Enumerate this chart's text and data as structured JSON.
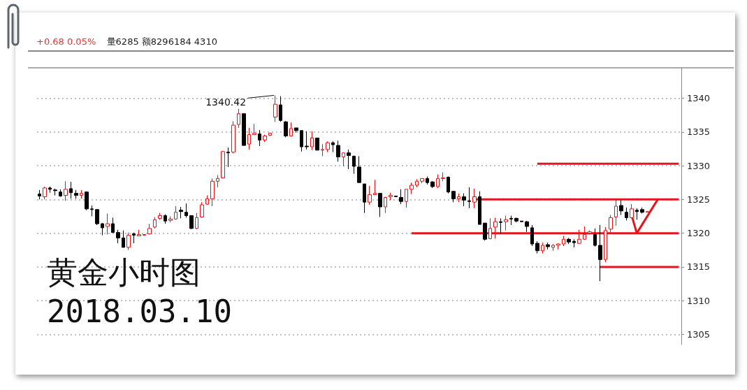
{
  "chart_data": {
    "type": "candlestick",
    "title": "黄金小时图",
    "subtitle": "2018.03.10",
    "annotations": [
      "+0.68 0.05%",
      "量6285 额8296184 4310",
      "1340.42"
    ],
    "categories": [
      null,
      null,
      null,
      null,
      null,
      null,
      null,
      null,
      null,
      null,
      null,
      null,
      null,
      null,
      null,
      null,
      null,
      null,
      null,
      null,
      null,
      null,
      null,
      null,
      null,
      null,
      null,
      null,
      null,
      null,
      null,
      null,
      null,
      null,
      null,
      null,
      null,
      null,
      null,
      null,
      null,
      null,
      null,
      null,
      null,
      null,
      null,
      null,
      null,
      null,
      null,
      null,
      null,
      null,
      null,
      null,
      null,
      null,
      null,
      null,
      null,
      null,
      null,
      null,
      null,
      null,
      null,
      null,
      null,
      null,
      null,
      null,
      null,
      null,
      null,
      null,
      null,
      null,
      null,
      null,
      null,
      null,
      null,
      null,
      null,
      null,
      null,
      null,
      null,
      null,
      null,
      null,
      null,
      null,
      null,
      null,
      null,
      null,
      null,
      null,
      null,
      null,
      null,
      null,
      null,
      null,
      null,
      null,
      null,
      null,
      null,
      null,
      null,
      null,
      null,
      null,
      null,
      null,
      null,
      null,
      null,
      null,
      null
    ],
    "ohlc": [
      [
        1325.8,
        1326.4,
        1325.0,
        1325.5
      ],
      [
        1325.4,
        1326.9,
        1325.0,
        1326.7
      ],
      [
        1326.7,
        1326.9,
        1326.0,
        1326.5
      ],
      [
        1326.4,
        1326.6,
        1325.6,
        1326.3
      ],
      [
        1326.1,
        1326.5,
        1325.4,
        1325.5
      ],
      [
        1325.6,
        1327.7,
        1324.8,
        1326.5
      ],
      [
        1326.6,
        1327.6,
        1325.1,
        1326.0
      ],
      [
        1325.9,
        1326.4,
        1325.1,
        1325.6
      ],
      [
        1325.6,
        1326.4,
        1325.1,
        1325.9
      ],
      [
        1326.1,
        1326.2,
        1323.4,
        1323.6
      ],
      [
        1323.6,
        1324.1,
        1322.5,
        1323.5
      ],
      [
        1323.5,
        1323.5,
        1321.2,
        1321.4
      ],
      [
        1321.4,
        1321.5,
        1319.7,
        1320.8
      ],
      [
        1321.0,
        1322.9,
        1319.8,
        1321.4
      ],
      [
        1321.4,
        1322.3,
        1320.1,
        1320.1
      ],
      [
        1320.1,
        1320.5,
        1318.5,
        1319.3
      ],
      [
        1319.3,
        1320.4,
        1317.9,
        1317.9
      ],
      [
        1317.9,
        1320.1,
        1317.5,
        1319.7
      ],
      [
        1319.9,
        1320.1,
        1318.5,
        1319.7
      ],
      [
        1319.6,
        1320.5,
        1319.6,
        1319.8
      ],
      [
        1319.7,
        1319.8,
        1319.7,
        1319.8
      ],
      [
        1319.9,
        1321.4,
        1319.8,
        1320.7
      ],
      [
        1320.9,
        1322.4,
        1320.7,
        1322.0
      ],
      [
        1322.2,
        1323.0,
        1322.0,
        1322.6
      ],
      [
        1322.6,
        1322.8,
        1321.4,
        1321.8
      ],
      [
        1321.9,
        1322.5,
        1321.6,
        1322.1
      ],
      [
        1322.1,
        1324.0,
        1322.0,
        1323.1
      ],
      [
        1323.4,
        1323.9,
        1322.2,
        1323.2
      ],
      [
        1323.1,
        1324.4,
        1322.3,
        1322.6
      ],
      [
        1322.6,
        1322.6,
        1320.6,
        1320.7
      ],
      [
        1320.7,
        1323.0,
        1320.6,
        1322.3
      ],
      [
        1322.4,
        1324.6,
        1322.3,
        1324.2
      ],
      [
        1324.3,
        1325.6,
        1324.2,
        1325.1
      ],
      [
        1325.1,
        1328.1,
        1324.0,
        1327.7
      ],
      [
        1327.7,
        1328.6,
        1326.8,
        1328.1
      ],
      [
        1328.2,
        1332.2,
        1328.1,
        1332.1
      ],
      [
        1332.0,
        1332.7,
        1329.8,
        1331.9
      ],
      [
        1332.0,
        1336.6,
        1331.8,
        1336.0
      ],
      [
        1336.1,
        1338.4,
        1335.6,
        1337.7
      ],
      [
        1337.7,
        1337.7,
        1333.0,
        1333.0
      ],
      [
        1333.2,
        1335.6,
        1332.4,
        1334.6
      ],
      [
        1334.6,
        1336.2,
        1334.6,
        1334.8
      ],
      [
        1334.7,
        1335.3,
        1332.9,
        1333.8
      ],
      [
        1333.8,
        1334.6,
        1333.5,
        1334.4
      ],
      [
        1334.5,
        1334.9,
        1334.4,
        1334.8
      ],
      [
        1337.2,
        1340.42,
        1336.5,
        1339.1
      ],
      [
        1339.0,
        1340.3,
        1336.5,
        1336.7
      ],
      [
        1336.5,
        1336.6,
        1334.2,
        1334.4
      ],
      [
        1334.4,
        1336.4,
        1334.3,
        1335.5
      ],
      [
        1335.6,
        1335.6,
        1334.9,
        1335.2
      ],
      [
        1335.2,
        1335.2,
        1332.1,
        1332.8
      ],
      [
        1332.9,
        1335.1,
        1332.4,
        1332.8
      ],
      [
        1332.8,
        1335.1,
        1332.3,
        1334.1
      ],
      [
        1334.1,
        1334.1,
        1332.3,
        1332.3
      ],
      [
        1332.3,
        1333.2,
        1331.4,
        1332.4
      ],
      [
        1332.4,
        1333.6,
        1332.0,
        1333.4
      ],
      [
        1333.4,
        1333.6,
        1332.0,
        1333.1
      ],
      [
        1333.0,
        1333.7,
        1330.6,
        1331.3
      ],
      [
        1331.3,
        1331.9,
        1329.9,
        1331.9
      ],
      [
        1331.9,
        1332.4,
        1329.5,
        1331.5
      ],
      [
        1331.4,
        1331.5,
        1328.8,
        1329.9
      ],
      [
        1329.8,
        1331.4,
        1327.5,
        1327.5
      ],
      [
        1327.3,
        1327.3,
        1323.0,
        1324.6
      ],
      [
        1324.6,
        1327.0,
        1324.2,
        1325.7
      ],
      [
        1325.7,
        1327.9,
        1325.7,
        1325.9
      ],
      [
        1325.9,
        1325.9,
        1322.4,
        1323.9
      ],
      [
        1323.9,
        1325.4,
        1323.0,
        1325.3
      ],
      [
        1325.4,
        1326.0,
        1324.9,
        1325.6
      ],
      [
        1325.5,
        1325.5,
        1325.4,
        1325.4
      ],
      [
        1325.3,
        1326.5,
        1324.3,
        1324.7
      ],
      [
        1324.7,
        1326.5,
        1323.8,
        1326.5
      ],
      [
        1326.5,
        1327.5,
        1325.8,
        1327.1
      ],
      [
        1327.1,
        1328.0,
        1326.8,
        1327.7
      ],
      [
        1327.7,
        1328.1,
        1327.4,
        1328.1
      ],
      [
        1328.1,
        1328.4,
        1327.2,
        1327.5
      ],
      [
        1327.6,
        1327.7,
        1326.7,
        1326.9
      ],
      [
        1326.9,
        1328.7,
        1326.7,
        1328.1
      ],
      [
        1328.1,
        1329.0,
        1327.7,
        1328.2
      ],
      [
        1328.3,
        1328.4,
        1325.9,
        1326.1
      ],
      [
        1326.2,
        1326.2,
        1324.6,
        1325.1
      ],
      [
        1325.1,
        1325.9,
        1324.6,
        1325.4
      ],
      [
        1325.4,
        1325.9,
        1324.0,
        1324.9
      ],
      [
        1324.8,
        1326.8,
        1323.7,
        1324.7
      ],
      [
        1324.6,
        1326.6,
        1323.7,
        1325.4
      ],
      [
        1325.4,
        1326.2,
        1321.3,
        1321.3
      ],
      [
        1321.5,
        1321.5,
        1318.9,
        1319.1
      ],
      [
        1319.2,
        1322.2,
        1319.1,
        1320.7
      ],
      [
        1320.9,
        1322.3,
        1319.2,
        1321.7
      ],
      [
        1321.7,
        1322.2,
        1320.0,
        1321.6
      ],
      [
        1321.7,
        1322.6,
        1320.4,
        1322.0
      ],
      [
        1322.2,
        1322.6,
        1321.2,
        1322.1
      ],
      [
        1322.2,
        1322.3,
        1321.6,
        1321.8
      ],
      [
        1321.8,
        1321.8,
        1321.7,
        1321.7
      ],
      [
        1321.7,
        1321.8,
        1320.2,
        1321.0
      ],
      [
        1320.8,
        1321.2,
        1318.1,
        1318.4
      ],
      [
        1318.5,
        1318.8,
        1317.0,
        1317.4
      ],
      [
        1317.4,
        1318.6,
        1317.0,
        1318.2
      ],
      [
        1318.3,
        1318.6,
        1317.6,
        1318.0
      ],
      [
        1317.9,
        1318.4,
        1317.4,
        1318.2
      ],
      [
        1318.2,
        1318.5,
        1317.6,
        1318.4
      ],
      [
        1318.4,
        1319.6,
        1318.1,
        1319.1
      ],
      [
        1319.1,
        1319.3,
        1318.4,
        1318.7
      ],
      [
        1318.8,
        1319.1,
        1317.9,
        1318.6
      ],
      [
        1318.5,
        1320.5,
        1318.4,
        1319.1
      ],
      [
        1319.1,
        1321.0,
        1319.0,
        1319.8
      ],
      [
        1320.0,
        1320.4,
        1319.8,
        1320.2
      ],
      [
        1319.8,
        1320.7,
        1318.0,
        1318.2
      ],
      [
        1318.2,
        1321.2,
        1312.9,
        1316.1
      ],
      [
        1316.1,
        1320.9,
        1315.7,
        1320.4
      ],
      [
        1320.6,
        1322.7,
        1319.9,
        1322.3
      ],
      [
        1322.4,
        1325.1,
        1321.1,
        1324.0
      ],
      [
        1324.1,
        1324.9,
        1322.7,
        1323.3
      ],
      [
        1323.1,
        1323.8,
        1321.9,
        1322.3
      ],
      [
        1322.3,
        1324.3,
        1322.2,
        1323.6
      ],
      [
        1323.4,
        1323.7,
        1322.0,
        1323.2
      ],
      [
        1323.5,
        1323.8,
        1322.9,
        1323.1
      ],
      [
        1323.1,
        1323.2,
        1323.1,
        1323.2
      ],
      null,
      null,
      null,
      null,
      null,
      null
    ],
    "colors": [
      "#000000",
      "#ee1111",
      "#000000",
      "#000000",
      "#000000",
      "#ee1111",
      "#000000",
      "#000000",
      "#ee1111",
      "#000000",
      "#000000",
      "#000000",
      "#000000",
      "#ee1111",
      "#000000",
      "#000000",
      "#000000",
      "#ee1111",
      "#000000",
      "#ee1111",
      "#ee1111",
      "#ee1111",
      "#ee1111",
      "#ee1111",
      "#000000",
      "#ee1111",
      "#ee1111",
      "#000000",
      "#000000",
      "#000000",
      "#ee1111",
      "#ee1111",
      "#ee1111",
      "#ee1111",
      "#ee1111",
      "#ee1111",
      "#000000",
      "#ee1111",
      "#ee1111",
      "#000000",
      "#ee1111",
      "#ee1111",
      "#000000",
      "#ee1111",
      "#ee1111",
      "#ee1111",
      "#000000",
      "#000000",
      "#ee1111",
      "#000000",
      "#000000",
      "#000000",
      "#ee1111",
      "#000000",
      "#ee1111",
      "#ee1111",
      "#000000",
      "#000000",
      "#ee1111",
      "#000000",
      "#000000",
      "#000000",
      "#000000",
      "#ee1111",
      "#ee1111",
      "#000000",
      "#ee1111",
      "#ee1111",
      "#000000",
      "#000000",
      "#ee1111",
      "#ee1111",
      "#ee1111",
      "#ee1111",
      "#000000",
      "#000000",
      "#ee1111",
      "#ee1111",
      "#000000",
      "#000000",
      "#ee1111",
      "#000000",
      "#000000",
      "#ee1111",
      "#000000",
      "#000000",
      "#ee1111",
      "#ee1111",
      "#000000",
      "#ee1111",
      "#000000",
      "#000000",
      "#000000",
      "#000000",
      "#000000",
      "#000000",
      "#ee1111",
      "#000000",
      "#ee1111",
      "#ee1111",
      "#ee1111",
      "#000000",
      "#000000",
      "#ee1111",
      "#ee1111",
      "#ee1111",
      "#000000",
      "#000000",
      "#ee1111",
      "#ee1111",
      "#ee1111",
      "#000000",
      "#000000",
      "#ee1111",
      "#000000",
      "#000000",
      "#ee1111",
      null,
      null,
      null,
      null,
      null,
      null
    ],
    "series": [
      {
        "type": "line",
        "color": "#e8141c",
        "values": [
          null,
          null,
          null,
          null,
          null,
          null,
          null,
          null,
          null,
          null,
          null,
          null,
          null,
          null,
          null,
          null,
          null,
          null,
          null,
          null,
          null,
          null,
          null,
          null,
          null,
          null,
          null,
          null,
          null,
          null,
          null,
          null,
          null,
          null,
          null,
          null,
          null,
          null,
          null,
          null,
          null,
          null,
          null,
          null,
          null,
          null,
          null,
          null,
          null,
          null,
          null,
          null,
          null,
          null,
          null,
          null,
          null,
          null,
          null,
          null,
          null,
          null,
          null,
          null,
          null,
          null,
          null,
          null,
          null,
          null,
          null,
          null,
          null,
          null,
          null,
          null,
          null,
          null,
          null,
          null,
          null,
          null,
          null,
          null,
          null,
          null,
          null,
          null,
          null,
          null,
          null,
          null,
          null,
          null,
          null,
          1330.3,
          null,
          null,
          null,
          null,
          null,
          null,
          null,
          null,
          null,
          null,
          null,
          null,
          null,
          null,
          null,
          null,
          null,
          null,
          null,
          null,
          null,
          null,
          null,
          null,
          null,
          null,
          1330.3
        ]
      },
      {
        "type": "line",
        "color": "#e8141c",
        "values": [
          null,
          null,
          null,
          null,
          null,
          null,
          null,
          null,
          null,
          null,
          null,
          null,
          null,
          null,
          null,
          null,
          null,
          null,
          null,
          null,
          null,
          null,
          null,
          null,
          null,
          null,
          null,
          null,
          null,
          null,
          null,
          null,
          null,
          null,
          null,
          null,
          null,
          null,
          null,
          null,
          null,
          null,
          null,
          null,
          null,
          null,
          null,
          null,
          null,
          null,
          null,
          null,
          null,
          null,
          null,
          null,
          null,
          null,
          null,
          null,
          null,
          null,
          null,
          null,
          null,
          null,
          null,
          null,
          null,
          null,
          null,
          null,
          null,
          null,
          null,
          null,
          null,
          null,
          null,
          null,
          null,
          null,
          null,
          1325,
          null,
          null,
          null,
          null,
          null,
          null,
          null,
          null,
          null,
          null,
          null,
          null,
          null,
          null,
          null,
          null,
          null,
          null,
          null,
          null,
          null,
          null,
          null,
          null,
          null,
          null,
          null,
          null,
          null,
          null,
          null,
          null,
          null,
          null,
          null,
          null,
          null,
          null,
          1325
        ]
      },
      {
        "type": "line",
        "color": "#e8141c",
        "values": [
          null,
          null,
          null,
          null,
          null,
          null,
          null,
          null,
          null,
          null,
          null,
          null,
          null,
          null,
          null,
          null,
          null,
          null,
          null,
          null,
          null,
          null,
          null,
          null,
          null,
          null,
          null,
          null,
          null,
          null,
          null,
          null,
          null,
          null,
          null,
          null,
          null,
          null,
          null,
          null,
          null,
          null,
          null,
          null,
          null,
          null,
          null,
          null,
          null,
          null,
          null,
          null,
          null,
          null,
          null,
          null,
          null,
          null,
          null,
          null,
          null,
          null,
          null,
          null,
          null,
          null,
          null,
          null,
          null,
          null,
          null,
          1320,
          null,
          null,
          null,
          null,
          null,
          null,
          null,
          null,
          null,
          null,
          null,
          null,
          null,
          null,
          null,
          null,
          null,
          null,
          null,
          null,
          null,
          null,
          null,
          null,
          null,
          null,
          null,
          null,
          null,
          null,
          null,
          null,
          null,
          null,
          null,
          null,
          null,
          null,
          null,
          null,
          null,
          null,
          null,
          null,
          null,
          null,
          null,
          null,
          null,
          null,
          1320
        ]
      },
      {
        "type": "line",
        "color": "#e8141c",
        "values": [
          null,
          null,
          null,
          null,
          null,
          null,
          null,
          null,
          null,
          null,
          null,
          null,
          null,
          null,
          null,
          null,
          null,
          null,
          null,
          null,
          null,
          null,
          null,
          null,
          null,
          null,
          null,
          null,
          null,
          null,
          null,
          null,
          null,
          null,
          null,
          null,
          null,
          null,
          null,
          null,
          null,
          null,
          null,
          null,
          null,
          null,
          null,
          null,
          null,
          null,
          null,
          null,
          null,
          null,
          null,
          null,
          null,
          null,
          null,
          null,
          null,
          null,
          null,
          null,
          null,
          null,
          null,
          null,
          null,
          null,
          null,
          null,
          null,
          null,
          null,
          null,
          null,
          null,
          null,
          null,
          null,
          null,
          null,
          null,
          null,
          null,
          null,
          null,
          null,
          null,
          null,
          null,
          null,
          null,
          null,
          null,
          null,
          null,
          null,
          null,
          null,
          null,
          null,
          null,
          null,
          null,
          null,
          1315,
          null,
          null,
          null,
          null,
          null,
          null,
          null,
          null,
          null,
          null,
          null,
          null,
          null,
          null,
          1315
        ]
      },
      {
        "type": "line",
        "color": "#e8141c",
        "values": [
          null,
          null,
          null,
          null,
          null,
          null,
          null,
          null,
          null,
          null,
          null,
          null,
          null,
          null,
          null,
          null,
          null,
          null,
          null,
          null,
          null,
          null,
          null,
          null,
          null,
          null,
          null,
          null,
          null,
          null,
          null,
          null,
          null,
          null,
          null,
          null,
          null,
          null,
          null,
          null,
          null,
          null,
          null,
          null,
          null,
          null,
          null,
          null,
          null,
          null,
          null,
          null,
          null,
          null,
          null,
          null,
          null,
          null,
          null,
          null,
          null,
          null,
          null,
          null,
          null,
          null,
          null,
          null,
          null,
          null,
          null,
          null,
          null,
          null,
          null,
          null,
          null,
          null,
          null,
          null,
          null,
          null,
          null,
          null,
          null,
          null,
          null,
          null,
          null,
          null,
          null,
          null,
          null,
          null,
          null,
          null,
          null,
          null,
          null,
          null,
          null,
          null,
          null,
          null,
          null,
          null,
          null,
          null,
          null,
          null,
          null,
          null,
          null,
          1322.7,
          1320,
          null,
          null,
          null,
          1325,
          null,
          null,
          null,
          null
        ]
      }
    ],
    "ylim": [
      1303.5,
      1344.5
    ],
    "yticks": [
      1305,
      1310,
      1315,
      1320,
      1325,
      1330,
      1335,
      1340
    ],
    "grid": "y",
    "tick_labels": "y"
  }
}
